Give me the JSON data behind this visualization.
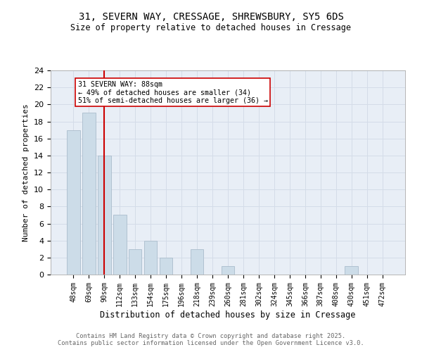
{
  "title_line1": "31, SEVERN WAY, CRESSAGE, SHREWSBURY, SY5 6DS",
  "title_line2": "Size of property relative to detached houses in Cressage",
  "xlabel": "Distribution of detached houses by size in Cressage",
  "ylabel": "Number of detached properties",
  "bar_labels": [
    "48sqm",
    "69sqm",
    "90sqm",
    "112sqm",
    "133sqm",
    "154sqm",
    "175sqm",
    "196sqm",
    "218sqm",
    "239sqm",
    "260sqm",
    "281sqm",
    "302sqm",
    "324sqm",
    "345sqm",
    "366sqm",
    "387sqm",
    "408sqm",
    "430sqm",
    "451sqm",
    "472sqm"
  ],
  "bar_values": [
    17,
    19,
    14,
    7,
    3,
    4,
    2,
    0,
    3,
    0,
    1,
    0,
    0,
    0,
    0,
    0,
    0,
    0,
    1,
    0,
    0
  ],
  "bar_color": "#ccdce8",
  "bar_edge_color": "#aabccc",
  "grid_color": "#d4dce8",
  "background_color": "#e8eef6",
  "ref_line_x": 2,
  "ref_line_color": "#cc0000",
  "annotation_text": "31 SEVERN WAY: 88sqm\n← 49% of detached houses are smaller (34)\n51% of semi-detached houses are larger (36) →",
  "annotation_box_color": "#ffffff",
  "annotation_box_edge_color": "#cc0000",
  "footer_line1": "Contains HM Land Registry data © Crown copyright and database right 2025.",
  "footer_line2": "Contains public sector information licensed under the Open Government Licence v3.0.",
  "ylim": [
    0,
    24
  ],
  "yticks": [
    0,
    2,
    4,
    6,
    8,
    10,
    12,
    14,
    16,
    18,
    20,
    22,
    24
  ]
}
